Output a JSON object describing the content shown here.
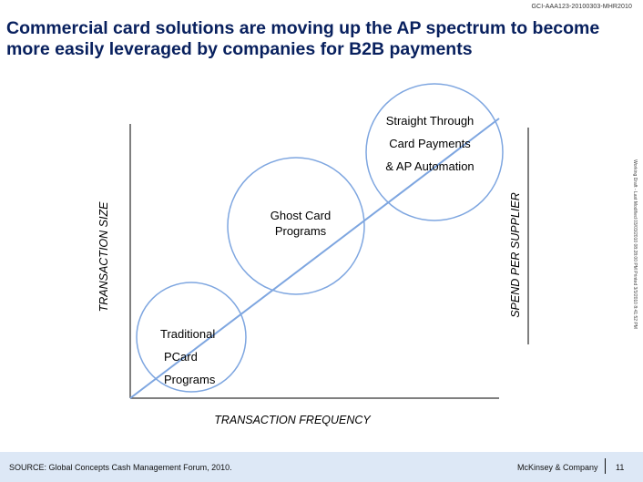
{
  "header": {
    "document_id": "GCI-AAA123-20100303-MHR2010",
    "title_line_1": "Commercial card solutions are moving up the AP spectrum to become",
    "title_line_2": "more easily leveraged by companies for B2B payments"
  },
  "diagram": {
    "y_axis_label": "TRANSACTION SIZE",
    "x_axis_label": "TRANSACTION FREQUENCY",
    "secondary_axis_label": "SPEND PER SUPPLIER",
    "stages": [
      {
        "lines": [
          "Traditional",
          "PCard",
          "Programs"
        ]
      },
      {
        "lines": [
          "Ghost Card",
          "Programs"
        ]
      },
      {
        "lines": [
          "Straight Through",
          "Card Payments",
          "& AP Automation"
        ]
      }
    ]
  },
  "side_note": "Working Draft - Last Modified 03/03/2010 08:28:00 PM     Printed 3/3/2010 8:41:52 PM",
  "footer": {
    "source": "SOURCE: Global Concepts Cash Management Forum, 2010.",
    "brand": "McKinsey & Company",
    "page_number": "11"
  },
  "colors": {
    "title": "#08205e",
    "trend_line": "#7ea6e0",
    "circle_stroke": "#7ea6e0",
    "footer_background": "#dde8f6"
  }
}
